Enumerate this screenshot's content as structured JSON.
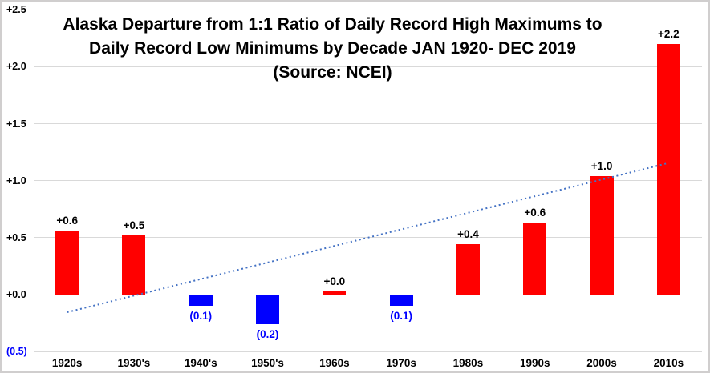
{
  "title": {
    "line1": "Alaska Departure from 1:1 Ratio of Daily Record High Maximums to",
    "line2": "Daily Record Low Minimums by Decade JAN 1920- DEC 2019",
    "line3": "(Source: NCEI)"
  },
  "colors": {
    "bar_positive": "#ff0000",
    "bar_negative": "#0000ff",
    "trendline": "#4472c4",
    "gridline": "#d9d9d9",
    "negative_text": "#0000ff",
    "positive_text": "#000000"
  },
  "chart_data": {
    "type": "bar",
    "title": "Alaska Departure from 1:1 Ratio of Daily Record High Maximums to Daily Record Low Minimums by Decade JAN 1920- DEC 2019 (Source: NCEI)",
    "categories": [
      "1920s",
      "1930's",
      "1940's",
      "1950's",
      "1960s",
      "1970s",
      "1980s",
      "1990s",
      "2000s",
      "2010s"
    ],
    "values": [
      0.56,
      0.52,
      -0.09,
      -0.25,
      0.03,
      -0.09,
      0.44,
      0.63,
      1.04,
      2.2
    ],
    "data_labels": [
      "+0.6",
      "+0.5",
      "(0.1)",
      "(0.2)",
      "+0.0",
      "(0.1)",
      "+0.4",
      "+0.6",
      "+1.0",
      "+2.2"
    ],
    "xlabel": "",
    "ylabel": "",
    "ylim": [
      -0.5,
      2.5
    ],
    "y_ticks": [
      {
        "label": "+2.5",
        "value": 2.5
      },
      {
        "label": "+2.0",
        "value": 2.0
      },
      {
        "label": "+1.5",
        "value": 1.5
      },
      {
        "label": "+1.0",
        "value": 1.0
      },
      {
        "label": "+0.5",
        "value": 0.5
      },
      {
        "label": "+0.0",
        "value": 0.0
      },
      {
        "label": "(0.5)",
        "value": -0.5
      }
    ],
    "grid": true,
    "legend": false,
    "trendline": {
      "style": "dotted",
      "start_value": -0.155,
      "end_value": 1.155,
      "start_category_index": 0,
      "end_category_index": 9
    }
  }
}
